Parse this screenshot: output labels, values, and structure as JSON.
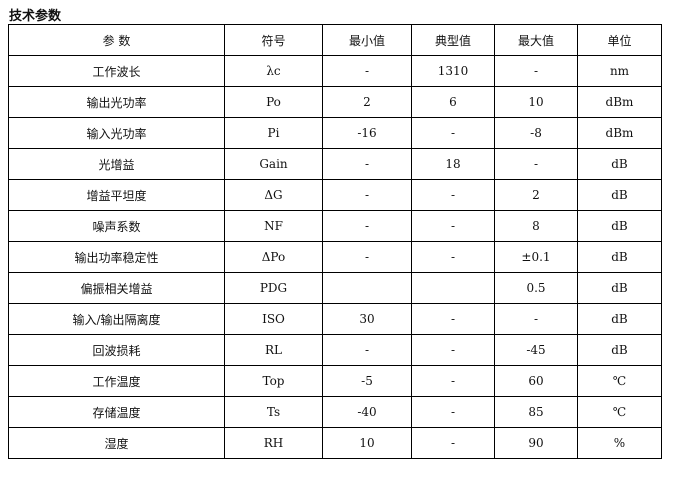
{
  "title": "技术参数",
  "headers": [
    "参 数",
    "符号",
    "最小值",
    "典型值",
    "最大值",
    "单位"
  ],
  "rows": [
    [
      "工作波长",
      "λc",
      "-",
      "1310",
      "-",
      "nm"
    ],
    [
      "输出光功率",
      "Po",
      "2",
      "6",
      "10",
      "dBm"
    ],
    [
      "输入光功率",
      "Pi",
      "-16",
      "-",
      "-8",
      "dBm"
    ],
    [
      "光增益",
      "Gain",
      "-",
      "18",
      "-",
      "dB"
    ],
    [
      "增益平坦度",
      "ΔG",
      "-",
      "-",
      "2",
      "dB"
    ],
    [
      "噪声系数",
      "NF",
      "-",
      "-",
      "8",
      "dB"
    ],
    [
      "输出功率稳定性",
      "ΔPo",
      "-",
      "-",
      "±0.1",
      "dB"
    ],
    [
      "偏振相关增益",
      "PDG",
      "",
      "",
      "0.5",
      "dB"
    ],
    [
      "输入/输出隔离度",
      "ISO",
      "30",
      "-",
      "-",
      "dB"
    ],
    [
      "回波损耗",
      "RL",
      "-",
      "-",
      "-45",
      "dB"
    ],
    [
      "工作温度",
      "Top",
      "-5",
      "-",
      "60",
      "℃"
    ],
    [
      "存储温度",
      "Ts",
      "-40",
      "-",
      "85",
      "℃"
    ],
    [
      "湿度",
      "RH",
      "10",
      "-",
      "90",
      "%"
    ]
  ]
}
